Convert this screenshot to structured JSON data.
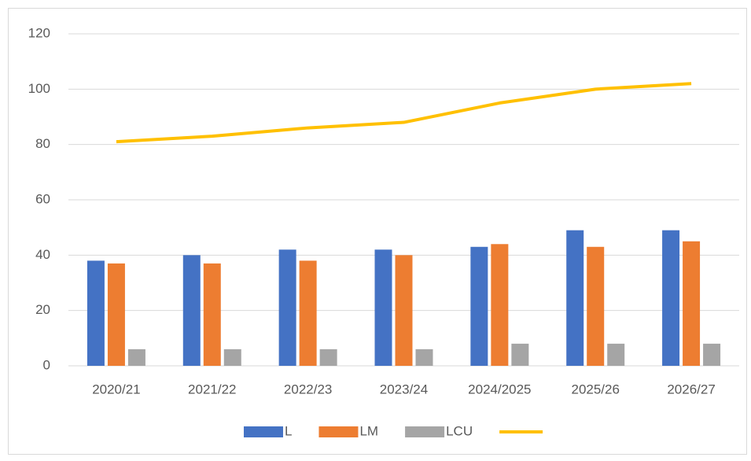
{
  "chart_data": {
    "type": "bar",
    "categories": [
      "2020/21",
      "2021/22",
      "2022/23",
      "2023/24",
      "2024/2025",
      "2025/26",
      "2026/27"
    ],
    "series": [
      {
        "name": "L",
        "color": "#4472c4",
        "values": [
          38,
          40,
          42,
          42,
          43,
          49,
          49
        ]
      },
      {
        "name": "LM",
        "color": "#ed7d31",
        "values": [
          37,
          37,
          38,
          40,
          44,
          43,
          45
        ]
      },
      {
        "name": "LCU",
        "color": "#a5a5a5",
        "values": [
          6,
          6,
          6,
          6,
          8,
          8,
          8
        ]
      },
      {
        "type": "line",
        "color": "#ffc000",
        "values": [
          81,
          83,
          86,
          88,
          95,
          100,
          102
        ]
      }
    ],
    "ylim": [
      0,
      120
    ],
    "yticks": [
      0,
      20,
      40,
      60,
      80,
      100,
      120
    ],
    "grid": true,
    "legend": "bottom"
  }
}
